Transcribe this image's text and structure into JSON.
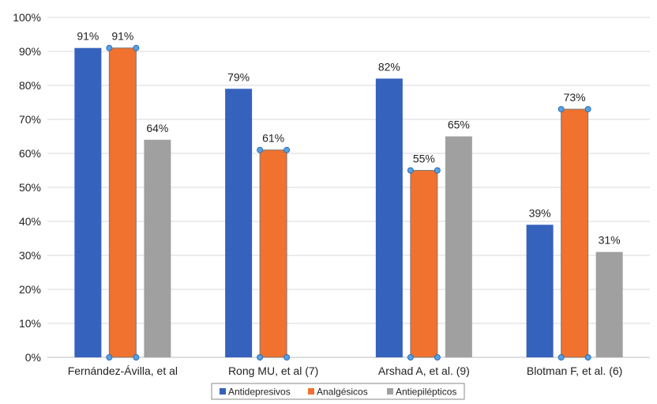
{
  "chart_data": {
    "type": "bar",
    "categories": [
      "Fernández-Ávilla, et al",
      "Rong MU, et al (7)",
      "Arshad A, et al. (9)",
      "Blotman F, et al. (6)"
    ],
    "series": [
      {
        "name": "Antidepresivos",
        "values": [
          91,
          79,
          82,
          39
        ],
        "labels": [
          "91%",
          "79%",
          "82%",
          "39%"
        ],
        "color": "#3562bd"
      },
      {
        "name": "Analgésicos",
        "values": [
          91,
          61,
          55,
          73
        ],
        "labels": [
          "91%",
          "61%",
          "55%",
          "73%"
        ],
        "color": "#f0722e"
      },
      {
        "name": "Antiepilépticos",
        "values": [
          64,
          null,
          65,
          31
        ],
        "labels": [
          "64%",
          "",
          "65%",
          "31%"
        ],
        "color": "#a0a0a0"
      }
    ],
    "yticks": [
      {
        "value": 0,
        "label": "0%"
      },
      {
        "value": 10,
        "label": "10%"
      },
      {
        "value": 20,
        "label": "20%"
      },
      {
        "value": 30,
        "label": "30%"
      },
      {
        "value": 40,
        "label": "40%"
      },
      {
        "value": 50,
        "label": "50%"
      },
      {
        "value": 60,
        "label": "60%"
      },
      {
        "value": 70,
        "label": "70%"
      },
      {
        "value": 80,
        "label": "80%"
      },
      {
        "value": 90,
        "label": "90%"
      },
      {
        "value": 100,
        "label": "100%"
      }
    ],
    "ylim": [
      0,
      100
    ],
    "grid": true,
    "legend_position": "bottom",
    "selected_series": "Analgésicos",
    "selection_handle_color": "#5aa0e0"
  }
}
